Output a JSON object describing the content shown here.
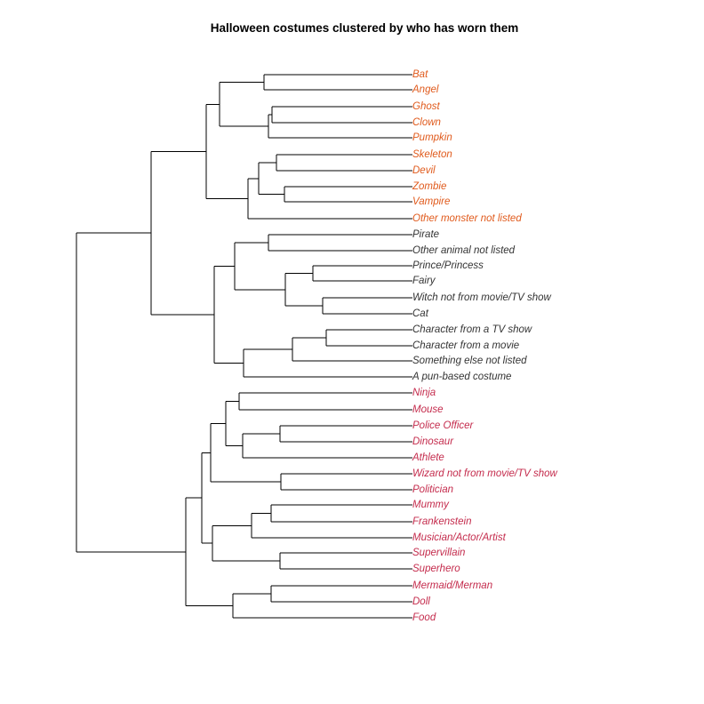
{
  "title": "Halloween costumes clustered by who has worn them",
  "cluster_colors": {
    "orange": "#e05a1c",
    "black": "#333333",
    "crimson": "#c42b4c"
  },
  "leaves": [
    {
      "label": "Bat",
      "color": "orange"
    },
    {
      "label": "Angel",
      "color": "orange"
    },
    {
      "label": "Ghost",
      "color": "orange"
    },
    {
      "label": "Clown",
      "color": "orange"
    },
    {
      "label": "Pumpkin",
      "color": "orange"
    },
    {
      "label": "Skeleton",
      "color": "orange"
    },
    {
      "label": "Devil",
      "color": "orange"
    },
    {
      "label": "Zombie",
      "color": "orange"
    },
    {
      "label": "Vampire",
      "color": "orange"
    },
    {
      "label": "Other monster not listed",
      "color": "orange"
    },
    {
      "label": "Pirate",
      "color": "black"
    },
    {
      "label": "Other animal not listed",
      "color": "black"
    },
    {
      "label": "Prince/Princess",
      "color": "black"
    },
    {
      "label": "Fairy",
      "color": "black"
    },
    {
      "label": "Witch not from movie/TV show",
      "color": "black"
    },
    {
      "label": "Cat",
      "color": "black"
    },
    {
      "label": "Character from a TV show",
      "color": "black"
    },
    {
      "label": "Character from a movie",
      "color": "black"
    },
    {
      "label": "Something else not listed",
      "color": "black"
    },
    {
      "label": "A pun-based costume",
      "color": "black"
    },
    {
      "label": "Ninja",
      "color": "crimson"
    },
    {
      "label": "Mouse",
      "color": "crimson"
    },
    {
      "label": "Police Officer",
      "color": "crimson"
    },
    {
      "label": "Dinosaur",
      "color": "crimson"
    },
    {
      "label": "Athlete",
      "color": "crimson"
    },
    {
      "label": "Wizard not from movie/TV show",
      "color": "crimson"
    },
    {
      "label": "Politician",
      "color": "crimson"
    },
    {
      "label": "Mummy",
      "color": "crimson"
    },
    {
      "label": "Frankenstein",
      "color": "crimson"
    },
    {
      "label": "Musician/Actor/Artist",
      "color": "crimson"
    },
    {
      "label": "Supervillain",
      "color": "crimson"
    },
    {
      "label": "Superhero",
      "color": "crimson"
    },
    {
      "label": "Mermaid/Merman",
      "color": "crimson"
    },
    {
      "label": "Doll",
      "color": "crimson"
    },
    {
      "label": "Food",
      "color": "crimson"
    }
  ]
}
